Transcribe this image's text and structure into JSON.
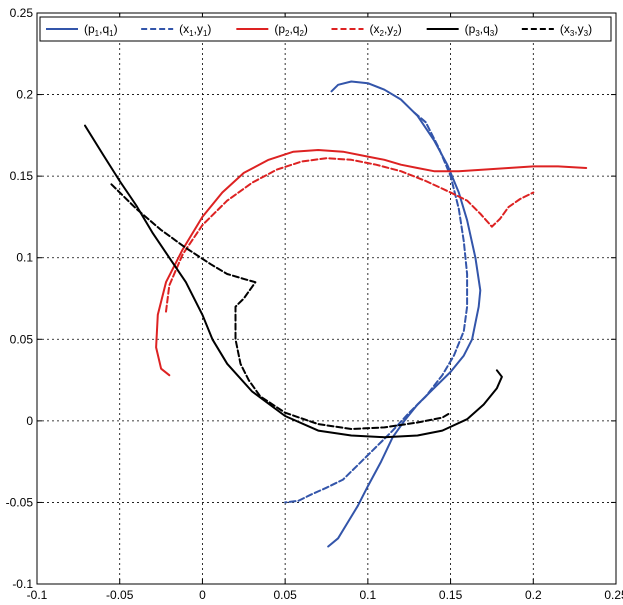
{
  "chart_data": {
    "type": "line",
    "title": "",
    "xlabel": "",
    "ylabel": "",
    "xlim": [
      -0.1,
      0.25
    ],
    "ylim": [
      -0.1,
      0.25
    ],
    "grid": true,
    "legend_placement": "top",
    "xticks": [
      "-0.1",
      "-0.05",
      "0",
      "0.05",
      "0.1",
      "0.15",
      "0.2",
      "0.25"
    ],
    "yticks": [
      "-0.1",
      "-0.05",
      "0",
      "0.05",
      "0.1",
      "0.15",
      "0.2",
      "0.25"
    ],
    "series": [
      {
        "name": "(p1,q1)",
        "label_main": [
          "(p",
          ",q",
          ")"
        ],
        "label_sub": [
          "1",
          "1"
        ],
        "color": "#3355aa",
        "dash": "solid",
        "x": [
          0.078,
          0.082,
          0.09,
          0.1,
          0.11,
          0.12,
          0.13,
          0.14,
          0.148,
          0.155,
          0.16,
          0.165,
          0.168,
          0.167,
          0.163,
          0.158,
          0.15,
          0.14,
          0.13,
          0.122,
          0.115,
          0.108,
          0.1,
          0.094,
          0.088,
          0.082,
          0.076
        ],
        "y": [
          0.202,
          0.206,
          0.208,
          0.207,
          0.203,
          0.197,
          0.187,
          0.172,
          0.157,
          0.14,
          0.123,
          0.1,
          0.08,
          0.07,
          0.05,
          0.04,
          0.03,
          0.02,
          0.01,
          0.0,
          -0.01,
          -0.025,
          -0.04,
          -0.052,
          -0.062,
          -0.072,
          -0.077
        ]
      },
      {
        "name": "(x1,y1)",
        "label_main": [
          "(x",
          ",y",
          ")"
        ],
        "label_sub": [
          "1",
          "1"
        ],
        "color": "#3355aa",
        "dash": "dashed",
        "x": [
          0.128,
          0.135,
          0.143,
          0.15,
          0.155,
          0.158,
          0.16,
          0.16,
          0.158,
          0.152,
          0.145,
          0.135,
          0.125,
          0.115,
          0.105,
          0.095,
          0.085,
          0.075,
          0.066,
          0.058,
          0.05
        ],
        "y": [
          0.189,
          0.183,
          0.167,
          0.15,
          0.13,
          0.11,
          0.09,
          0.07,
          0.055,
          0.04,
          0.028,
          0.015,
          0.005,
          -0.006,
          -0.016,
          -0.026,
          -0.036,
          -0.041,
          -0.045,
          -0.049,
          -0.05
        ]
      },
      {
        "name": "(p2,q2)",
        "label_main": [
          "(p",
          ",q",
          ")"
        ],
        "label_sub": [
          "2",
          "2"
        ],
        "color": "#dd2222",
        "dash": "solid",
        "x": [
          -0.02,
          -0.025,
          -0.028,
          -0.027,
          -0.022,
          -0.012,
          0.0,
          0.012,
          0.025,
          0.04,
          0.055,
          0.07,
          0.085,
          0.1,
          0.11,
          0.12,
          0.13,
          0.14,
          0.155,
          0.17,
          0.185,
          0.2,
          0.215,
          0.232
        ],
        "y": [
          0.028,
          0.032,
          0.045,
          0.065,
          0.085,
          0.105,
          0.125,
          0.14,
          0.152,
          0.16,
          0.165,
          0.166,
          0.165,
          0.162,
          0.16,
          0.157,
          0.155,
          0.153,
          0.153,
          0.154,
          0.155,
          0.156,
          0.156,
          0.155
        ]
      },
      {
        "name": "(x2,y2)",
        "label_main": [
          "(x",
          ",y",
          ")"
        ],
        "label_sub": [
          "2",
          "2"
        ],
        "color": "#dd2222",
        "dash": "dashed",
        "x": [
          -0.022,
          -0.02,
          -0.012,
          0.0,
          0.015,
          0.03,
          0.045,
          0.06,
          0.075,
          0.09,
          0.105,
          0.12,
          0.135,
          0.15,
          0.16,
          0.168,
          0.175,
          0.18,
          0.185,
          0.192,
          0.2
        ],
        "y": [
          0.067,
          0.083,
          0.102,
          0.12,
          0.135,
          0.146,
          0.154,
          0.159,
          0.161,
          0.16,
          0.157,
          0.153,
          0.147,
          0.14,
          0.135,
          0.127,
          0.119,
          0.124,
          0.131,
          0.136,
          0.14
        ]
      },
      {
        "name": "(p3,q3)",
        "label_main": [
          "(p",
          ",q",
          ")"
        ],
        "label_sub": [
          "3",
          "3"
        ],
        "color": "#000000",
        "dash": "solid",
        "x": [
          -0.071,
          -0.06,
          -0.05,
          -0.04,
          -0.03,
          -0.02,
          -0.01,
          0.0,
          0.006,
          0.015,
          0.03,
          0.05,
          0.07,
          0.09,
          0.11,
          0.13,
          0.145,
          0.16,
          0.17,
          0.178,
          0.181,
          0.178
        ],
        "y": [
          0.181,
          0.163,
          0.147,
          0.132,
          0.115,
          0.1,
          0.085,
          0.065,
          0.05,
          0.035,
          0.018,
          0.003,
          -0.006,
          -0.009,
          -0.01,
          -0.009,
          -0.006,
          0.001,
          0.01,
          0.02,
          0.027,
          0.031
        ]
      },
      {
        "name": "(x3,y3)",
        "label_main": [
          "(x",
          ",y",
          ")"
        ],
        "label_sub": [
          "3",
          "3"
        ],
        "color": "#000000",
        "dash": "dashed",
        "x": [
          -0.055,
          -0.04,
          -0.025,
          -0.01,
          0.005,
          0.015,
          0.025,
          0.032,
          0.025,
          0.02,
          0.02,
          0.023,
          0.028,
          0.035,
          0.05,
          0.07,
          0.09,
          0.11,
          0.13,
          0.145,
          0.15
        ],
        "y": [
          0.145,
          0.13,
          0.117,
          0.106,
          0.096,
          0.09,
          0.087,
          0.085,
          0.075,
          0.07,
          0.05,
          0.035,
          0.025,
          0.015,
          0.005,
          -0.002,
          -0.005,
          -0.004,
          -0.001,
          0.002,
          0.005
        ]
      }
    ]
  }
}
